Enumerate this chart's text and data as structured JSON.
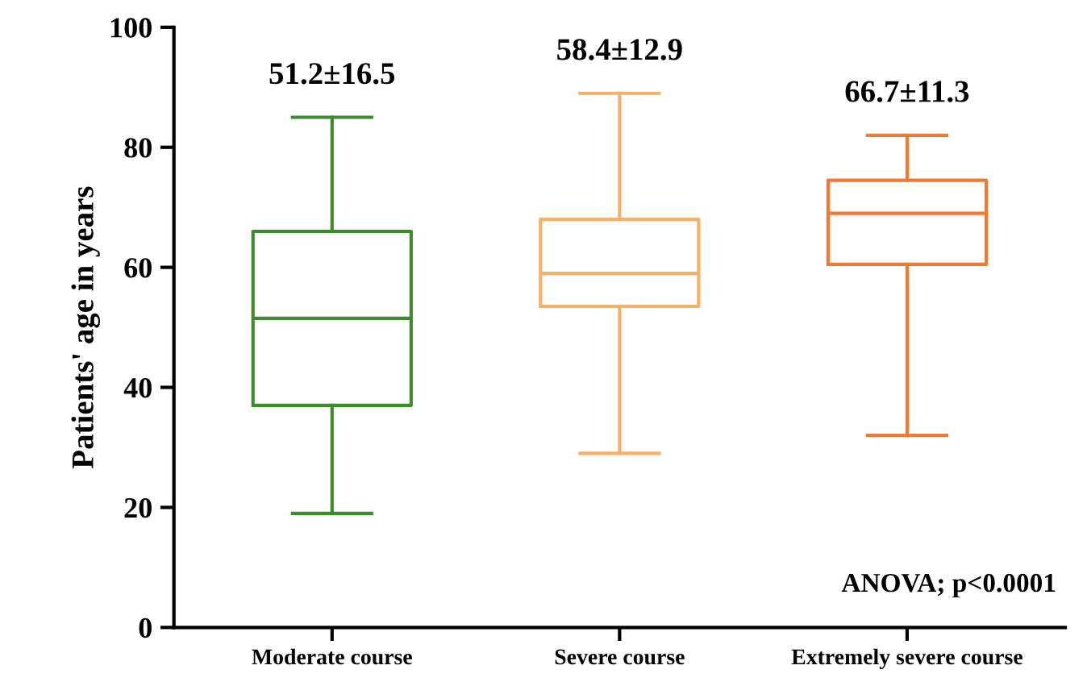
{
  "chart_data": {
    "type": "box",
    "ylabel": "Patients' age in years",
    "categories": [
      "Moderate course",
      "Severe course",
      "Extremely severe course"
    ],
    "colors": [
      "#3c8c2c",
      "#f5b06a",
      "#f07a32"
    ],
    "boxes": [
      {
        "low": 19,
        "q1": 37,
        "median": 51.5,
        "q3": 66,
        "high": 85
      },
      {
        "low": 29,
        "q1": 53.5,
        "median": 59,
        "q3": 68,
        "high": 89
      },
      {
        "low": 32,
        "q1": 60.5,
        "median": 69,
        "q3": 74.5,
        "high": 82
      }
    ],
    "ylim": [
      0,
      100
    ],
    "yticks": [
      0,
      20,
      40,
      60,
      80,
      100
    ],
    "grid": false,
    "legend": false,
    "annotations": [
      "51.2±16.5",
      "58.4±12.9",
      "66.7±11.3",
      "ANOVA; p<0.0001"
    ]
  }
}
